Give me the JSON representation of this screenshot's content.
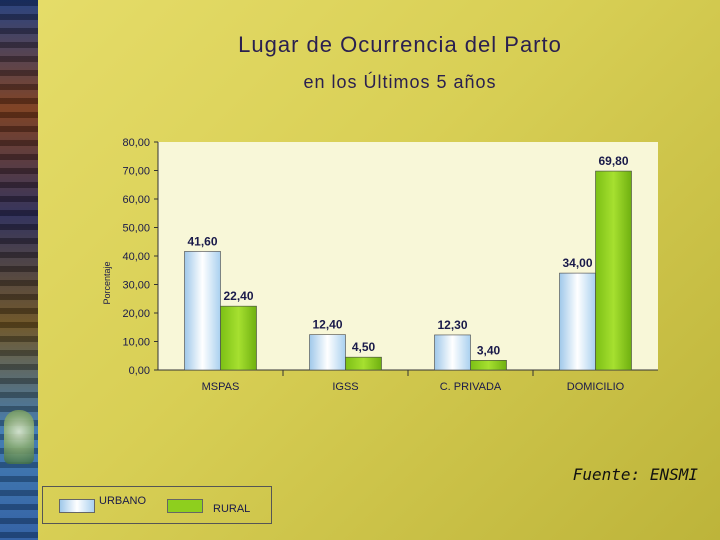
{
  "chart_data": {
    "type": "bar",
    "title": "Lugar de Ocurrencia del Parto",
    "subtitle": "en los Últimos 5 años",
    "ylabel": "Porcentaje",
    "categories": [
      "MSPAS",
      "IGSS",
      "C. PRIVADA",
      "DOMICILIO"
    ],
    "series": [
      {
        "name": "URBANO",
        "values": [
          41.6,
          12.4,
          12.3,
          34.0
        ],
        "labels": [
          "41,60",
          "12,40",
          "12,30",
          "34,00"
        ]
      },
      {
        "name": "RURAL",
        "values": [
          22.4,
          4.5,
          3.4,
          69.8
        ],
        "labels": [
          "22,40",
          "4,50",
          "3,40",
          "69,80"
        ]
      }
    ],
    "ylim": [
      0,
      80
    ],
    "yticks": [
      "0,00",
      "10,00",
      "20,00",
      "30,00",
      "40,00",
      "50,00",
      "60,00",
      "70,00",
      "80,00"
    ],
    "grid": false,
    "legend_position": "bottom-left",
    "colors": {
      "URBANO": "#cfe6f8",
      "RURAL": "#8ecf1e",
      "plot_bg": "#f8f7d8"
    }
  },
  "source": "Fuente: ENSMI"
}
